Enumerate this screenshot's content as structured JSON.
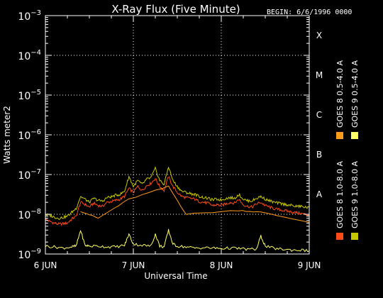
{
  "chart_data": {
    "type": "line",
    "title": "X-Ray Flux (Five Minute)",
    "begin_label": "BEGIN: 6/6/1996 0000",
    "xlabel": "Universal Time",
    "ylabel": "Watts meter2",
    "y_scale": "log",
    "ylim": [
      1e-09,
      0.001
    ],
    "xlim": [
      0,
      3
    ],
    "x_ticks": [
      {
        "value": 0,
        "label": "6 JUN"
      },
      {
        "value": 1,
        "label": "7 JUN"
      },
      {
        "value": 2,
        "label": "8 JUN"
      },
      {
        "value": 3,
        "label": "9 JUN"
      }
    ],
    "y_ticks": [
      {
        "exp": -9,
        "base": "10",
        "sup": "−9"
      },
      {
        "exp": -8,
        "base": "10",
        "sup": "−8"
      },
      {
        "exp": -7,
        "base": "10",
        "sup": "−7"
      },
      {
        "exp": -6,
        "base": "10",
        "sup": "−6"
      },
      {
        "exp": -5,
        "base": "10",
        "sup": "−5"
      },
      {
        "exp": -4,
        "base": "10",
        "sup": "−4"
      },
      {
        "exp": -3,
        "base": "10",
        "sup": "−3"
      }
    ],
    "flare_classes": [
      {
        "label": "A",
        "exp": -8
      },
      {
        "label": "B",
        "exp": -7
      },
      {
        "label": "C",
        "exp": -6
      },
      {
        "label": "M",
        "exp": -5
      },
      {
        "label": "X",
        "exp": -4
      }
    ],
    "grid": {
      "vertical_dotted_at": [
        1,
        2
      ],
      "horizontal_dotted_at_exp": [
        -8,
        -7,
        -6,
        -5,
        -4
      ]
    },
    "legend": {
      "placement": "right-vertical"
    },
    "series": [
      {
        "name": "GOES 8 1.0-8.0 A",
        "color": "#ff4a1a",
        "points": [
          [
            0.0,
            -8.12
          ],
          [
            0.05,
            -8.18
          ],
          [
            0.1,
            -8.22
          ],
          [
            0.15,
            -8.25
          ],
          [
            0.2,
            -8.24
          ],
          [
            0.25,
            -8.22
          ],
          [
            0.3,
            -8.12
          ],
          [
            0.35,
            -8.05
          ],
          [
            0.4,
            -7.7
          ],
          [
            0.45,
            -7.75
          ],
          [
            0.5,
            -7.82
          ],
          [
            0.55,
            -7.72
          ],
          [
            0.6,
            -7.78
          ],
          [
            0.65,
            -7.8
          ],
          [
            0.7,
            -7.7
          ],
          [
            0.75,
            -7.68
          ],
          [
            0.8,
            -7.65
          ],
          [
            0.85,
            -7.62
          ],
          [
            0.9,
            -7.55
          ],
          [
            0.95,
            -7.35
          ],
          [
            1.0,
            -7.45
          ],
          [
            1.05,
            -7.3
          ],
          [
            1.1,
            -7.4
          ],
          [
            1.15,
            -7.28
          ],
          [
            1.2,
            -7.22
          ],
          [
            1.25,
            -7.1
          ],
          [
            1.3,
            -7.3
          ],
          [
            1.35,
            -7.4
          ],
          [
            1.4,
            -7.05
          ],
          [
            1.45,
            -7.3
          ],
          [
            1.5,
            -7.45
          ],
          [
            1.55,
            -7.55
          ],
          [
            1.6,
            -7.58
          ],
          [
            1.65,
            -7.6
          ],
          [
            1.7,
            -7.62
          ],
          [
            1.75,
            -7.68
          ],
          [
            1.8,
            -7.7
          ],
          [
            1.85,
            -7.72
          ],
          [
            1.9,
            -7.78
          ],
          [
            1.95,
            -7.76
          ],
          [
            2.0,
            -7.78
          ],
          [
            2.05,
            -7.74
          ],
          [
            2.1,
            -7.7
          ],
          [
            2.15,
            -7.72
          ],
          [
            2.2,
            -7.62
          ],
          [
            2.25,
            -7.76
          ],
          [
            2.3,
            -7.8
          ],
          [
            2.35,
            -7.82
          ],
          [
            2.4,
            -7.74
          ],
          [
            2.45,
            -7.7
          ],
          [
            2.5,
            -7.78
          ],
          [
            2.55,
            -7.82
          ],
          [
            2.6,
            -7.86
          ],
          [
            2.65,
            -7.88
          ],
          [
            2.7,
            -7.9
          ],
          [
            2.75,
            -7.92
          ],
          [
            2.8,
            -7.94
          ],
          [
            2.85,
            -7.96
          ],
          [
            2.9,
            -7.98
          ],
          [
            2.95,
            -8.0
          ],
          [
            3.0,
            -8.02
          ]
        ]
      },
      {
        "name": "GOES 8 0.5-4.0 A",
        "color": "#ff9b1a",
        "points": [
          [
            0.4,
            -7.92
          ],
          [
            0.6,
            -8.1
          ],
          [
            0.95,
            -7.62
          ],
          [
            1.4,
            -7.3
          ],
          [
            1.6,
            -8.0
          ],
          [
            2.2,
            -7.9
          ],
          [
            2.45,
            -7.95
          ],
          [
            3.0,
            -8.2
          ]
        ]
      },
      {
        "name": "GOES 9 1.0-8.0 A",
        "color": "#c8c800",
        "points": [
          [
            0.0,
            -8.0
          ],
          [
            0.05,
            -8.03
          ],
          [
            0.1,
            -8.07
          ],
          [
            0.15,
            -8.1
          ],
          [
            0.2,
            -8.08
          ],
          [
            0.25,
            -8.05
          ],
          [
            0.3,
            -7.95
          ],
          [
            0.35,
            -7.85
          ],
          [
            0.4,
            -7.55
          ],
          [
            0.45,
            -7.62
          ],
          [
            0.5,
            -7.7
          ],
          [
            0.55,
            -7.6
          ],
          [
            0.6,
            -7.65
          ],
          [
            0.65,
            -7.67
          ],
          [
            0.7,
            -7.58
          ],
          [
            0.75,
            -7.56
          ],
          [
            0.8,
            -7.52
          ],
          [
            0.85,
            -7.5
          ],
          [
            0.9,
            -7.42
          ],
          [
            0.95,
            -7.05
          ],
          [
            1.0,
            -7.3
          ],
          [
            1.05,
            -7.15
          ],
          [
            1.1,
            -7.25
          ],
          [
            1.15,
            -7.12
          ],
          [
            1.2,
            -7.08
          ],
          [
            1.25,
            -6.85
          ],
          [
            1.3,
            -7.15
          ],
          [
            1.35,
            -7.25
          ],
          [
            1.4,
            -6.8
          ],
          [
            1.45,
            -7.15
          ],
          [
            1.5,
            -7.3
          ],
          [
            1.55,
            -7.42
          ],
          [
            1.6,
            -7.45
          ],
          [
            1.65,
            -7.48
          ],
          [
            1.7,
            -7.5
          ],
          [
            1.75,
            -7.55
          ],
          [
            1.8,
            -7.58
          ],
          [
            1.85,
            -7.6
          ],
          [
            1.9,
            -7.64
          ],
          [
            1.95,
            -7.62
          ],
          [
            2.0,
            -7.64
          ],
          [
            2.05,
            -7.6
          ],
          [
            2.1,
            -7.58
          ],
          [
            2.15,
            -7.6
          ],
          [
            2.2,
            -7.5
          ],
          [
            2.25,
            -7.62
          ],
          [
            2.3,
            -7.66
          ],
          [
            2.35,
            -7.66
          ],
          [
            2.4,
            -7.6
          ],
          [
            2.45,
            -7.55
          ],
          [
            2.5,
            -7.62
          ],
          [
            2.55,
            -7.66
          ],
          [
            2.6,
            -7.7
          ],
          [
            2.65,
            -7.72
          ],
          [
            2.7,
            -7.74
          ],
          [
            2.75,
            -7.76
          ],
          [
            2.8,
            -7.78
          ],
          [
            2.85,
            -7.8
          ],
          [
            2.9,
            -7.8
          ],
          [
            2.95,
            -7.82
          ],
          [
            3.0,
            -7.84
          ]
        ]
      },
      {
        "name": "GOES 9 0.5-4.0 A",
        "color": "#ffff66",
        "points": [
          [
            0.0,
            -8.8
          ],
          [
            0.1,
            -8.82
          ],
          [
            0.2,
            -8.85
          ],
          [
            0.3,
            -8.82
          ],
          [
            0.35,
            -8.8
          ],
          [
            0.4,
            -8.4
          ],
          [
            0.45,
            -8.78
          ],
          [
            0.5,
            -8.8
          ],
          [
            0.6,
            -8.8
          ],
          [
            0.7,
            -8.82
          ],
          [
            0.8,
            -8.82
          ],
          [
            0.9,
            -8.78
          ],
          [
            0.95,
            -8.5
          ],
          [
            1.0,
            -8.75
          ],
          [
            1.1,
            -8.78
          ],
          [
            1.2,
            -8.8
          ],
          [
            1.25,
            -8.5
          ],
          [
            1.3,
            -8.8
          ],
          [
            1.35,
            -8.82
          ],
          [
            1.4,
            -8.4
          ],
          [
            1.45,
            -8.75
          ],
          [
            1.5,
            -8.8
          ],
          [
            1.6,
            -8.82
          ],
          [
            1.7,
            -8.85
          ],
          [
            1.8,
            -8.84
          ],
          [
            1.9,
            -8.85
          ],
          [
            2.0,
            -8.86
          ],
          [
            2.1,
            -8.85
          ],
          [
            2.2,
            -8.86
          ],
          [
            2.3,
            -8.88
          ],
          [
            2.4,
            -8.88
          ],
          [
            2.45,
            -8.55
          ],
          [
            2.5,
            -8.8
          ],
          [
            2.6,
            -8.86
          ],
          [
            2.7,
            -8.88
          ],
          [
            2.8,
            -8.9
          ],
          [
            2.9,
            -8.9
          ],
          [
            3.0,
            -8.92
          ]
        ]
      }
    ]
  }
}
